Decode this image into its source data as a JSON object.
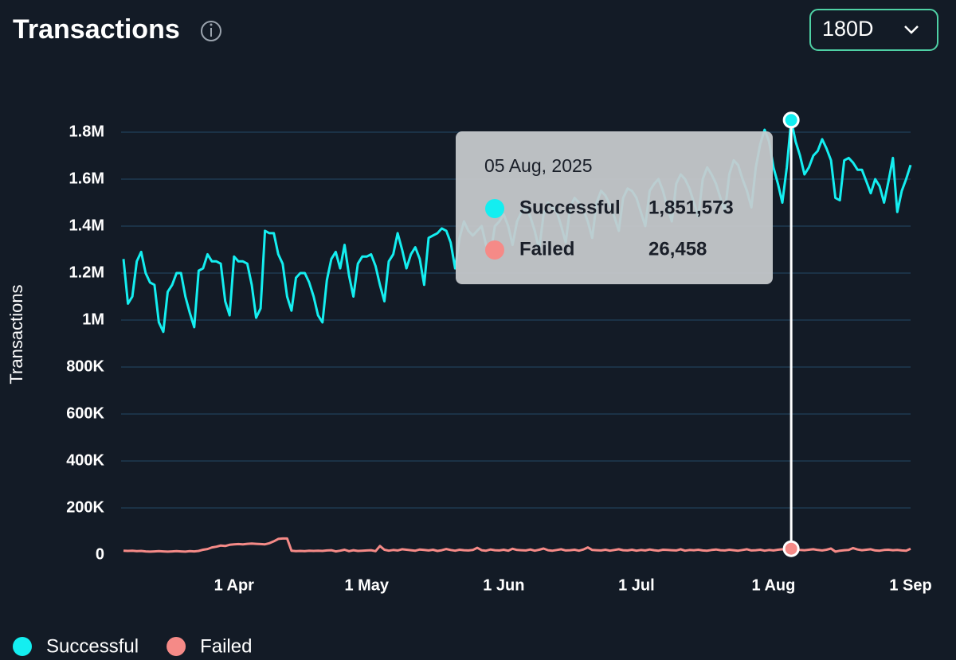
{
  "title": "Transactions",
  "controls": {
    "period": "180D"
  },
  "chart_data": {
    "type": "line",
    "y_label": "Transactions",
    "tooltip_title": "05 Aug, 2025",
    "ylim": [
      0,
      1800000
    ],
    "yticks": [
      0,
      {
        "value": 200000,
        "label": "200K"
      },
      {
        "value": 400000,
        "label": "400K"
      },
      {
        "value": 600000,
        "label": "600K"
      },
      {
        "value": 800000,
        "label": "800K"
      },
      {
        "value": 1000000,
        "label": "1M"
      },
      {
        "value": 1200000,
        "label": "1.2M"
      },
      {
        "value": 1400000,
        "label": "1.4M"
      },
      {
        "value": 1600000,
        "label": "1.6M"
      },
      {
        "value": 1800000,
        "label": "1.8M"
      }
    ],
    "grid": true,
    "legend": "bottom-left",
    "categories": [
      null,
      null,
      null,
      null,
      null,
      null,
      null,
      null,
      null,
      null,
      null,
      null,
      null,
      null,
      null,
      null,
      null,
      null,
      null,
      null,
      null,
      null,
      null,
      null,
      null,
      "1 Apr",
      null,
      null,
      null,
      null,
      null,
      null,
      null,
      null,
      null,
      null,
      null,
      null,
      null,
      null,
      null,
      null,
      null,
      null,
      null,
      null,
      null,
      null,
      null,
      null,
      null,
      null,
      null,
      null,
      null,
      "1 May",
      null,
      null,
      null,
      null,
      null,
      null,
      null,
      null,
      null,
      null,
      null,
      null,
      null,
      null,
      null,
      null,
      null,
      null,
      null,
      null,
      null,
      null,
      null,
      null,
      null,
      null,
      null,
      null,
      null,
      null,
      "1 Jun",
      null,
      null,
      null,
      null,
      null,
      null,
      null,
      null,
      null,
      null,
      null,
      null,
      null,
      null,
      null,
      null,
      null,
      null,
      null,
      null,
      null,
      null,
      null,
      null,
      null,
      null,
      null,
      null,
      null,
      "1 Jul",
      null,
      null,
      null,
      null,
      null,
      null,
      null,
      null,
      null,
      null,
      null,
      null,
      null,
      null,
      null,
      null,
      null,
      null,
      null,
      null,
      null,
      null,
      null,
      null,
      null,
      null,
      null,
      null,
      null,
      null,
      "1 Aug",
      null,
      null,
      null,
      null,
      null,
      null,
      null,
      null,
      null,
      null,
      null,
      null,
      null,
      null,
      null,
      null,
      null,
      null,
      null,
      null,
      null,
      null,
      null,
      null,
      null,
      null,
      null,
      null,
      null,
      null,
      "1 Sep"
    ],
    "series": [
      {
        "name": "Successful",
        "color": "#14eef0",
        "values": [
          1260000,
          1070000,
          1100000,
          1250000,
          1290000,
          1200000,
          1160000,
          1150000,
          990000,
          950000,
          1120000,
          1150000,
          1200000,
          1200000,
          1100000,
          1030000,
          970000,
          1210000,
          1220000,
          1280000,
          1250000,
          1250000,
          1240000,
          1080000,
          1020000,
          1270000,
          1250000,
          1250000,
          1240000,
          1150000,
          1010000,
          1050000,
          1380000,
          1370000,
          1370000,
          1280000,
          1240000,
          1100000,
          1040000,
          1180000,
          1200000,
          1200000,
          1160000,
          1100000,
          1020000,
          990000,
          1170000,
          1260000,
          1290000,
          1220000,
          1320000,
          1190000,
          1100000,
          1240000,
          1270000,
          1270000,
          1280000,
          1230000,
          1150000,
          1080000,
          1250000,
          1280000,
          1370000,
          1300000,
          1220000,
          1280000,
          1310000,
          1260000,
          1150000,
          1350000,
          1360000,
          1370000,
          1390000,
          1380000,
          1330000,
          1220000,
          1350000,
          1420000,
          1380000,
          1360000,
          1380000,
          1400000,
          1320000,
          1280000,
          1400000,
          1420000,
          1450000,
          1400000,
          1320000,
          1420000,
          1460000,
          1480000,
          1440000,
          1380000,
          1300000,
          1450000,
          1500000,
          1480000,
          1460000,
          1400000,
          1330000,
          1480000,
          1520000,
          1500000,
          1470000,
          1420000,
          1350000,
          1500000,
          1550000,
          1530000,
          1490000,
          1440000,
          1380000,
          1520000,
          1560000,
          1550000,
          1520000,
          1460000,
          1400000,
          1550000,
          1580000,
          1600000,
          1550000,
          1480000,
          1420000,
          1580000,
          1620000,
          1600000,
          1560000,
          1500000,
          1440000,
          1600000,
          1650000,
          1620000,
          1580000,
          1520000,
          1460000,
          1620000,
          1680000,
          1660000,
          1600000,
          1550000,
          1480000,
          1650000,
          1750000,
          1810000,
          1760000,
          1650000,
          1580000,
          1500000,
          1650000,
          1851573,
          1760000,
          1700000,
          1620000,
          1650000,
          1700000,
          1720000,
          1770000,
          1730000,
          1680000,
          1520000,
          1510000,
          1680000,
          1690000,
          1670000,
          1640000,
          1640000,
          1590000,
          1540000,
          1600000,
          1570000,
          1500000,
          1590000,
          1690000,
          1460000,
          1550000,
          1600000,
          1660000
        ],
        "value_labels": [
          null,
          null,
          null,
          null,
          null,
          null,
          null,
          null,
          null,
          null,
          null,
          null,
          null,
          null,
          null,
          null,
          null,
          null,
          null,
          null,
          null,
          null,
          null,
          null,
          null,
          null,
          null,
          null,
          null,
          null,
          null,
          null,
          null,
          null,
          null,
          null,
          null,
          null,
          null,
          null,
          null,
          null,
          null,
          null,
          null,
          null,
          null,
          null,
          null,
          null,
          null,
          null,
          null,
          null,
          null,
          null,
          null,
          null,
          null,
          null,
          null,
          null,
          null,
          null,
          null,
          null,
          null,
          null,
          null,
          null,
          null,
          null,
          null,
          null,
          null,
          null,
          null,
          null,
          null,
          null,
          null,
          null,
          null,
          null,
          null,
          null,
          null,
          null,
          null,
          null,
          null,
          null,
          null,
          null,
          null,
          null,
          null,
          null,
          null,
          null,
          null,
          null,
          null,
          null,
          null,
          null,
          null,
          null,
          null,
          null,
          null,
          null,
          null,
          null,
          null,
          null,
          null,
          null,
          null,
          null,
          null,
          null,
          null,
          null,
          null,
          null,
          null,
          null,
          null,
          null,
          null,
          null,
          null,
          null,
          null,
          null,
          null,
          null,
          null,
          null,
          null,
          null,
          null,
          null,
          null,
          null,
          null,
          null,
          null,
          null,
          null,
          "1,851,573",
          null,
          null,
          null,
          null,
          null,
          null,
          null,
          null,
          null,
          null,
          null,
          null,
          null,
          null,
          null,
          null,
          null,
          null,
          null,
          null,
          null,
          null,
          null,
          null,
          null,
          null,
          null
        ]
      },
      {
        "name": "Failed",
        "color": "#f58a87",
        "values": [
          18000,
          17000,
          18000,
          16000,
          17000,
          15000,
          14000,
          15000,
          16000,
          15000,
          14000,
          15000,
          16000,
          15000,
          14000,
          16000,
          15000,
          17000,
          22000,
          25000,
          32000,
          35000,
          40000,
          38000,
          43000,
          45000,
          46000,
          45000,
          47000,
          48000,
          47000,
          46000,
          45000,
          50000,
          58000,
          68000,
          70000,
          70000,
          18000,
          16000,
          17000,
          16000,
          18000,
          17000,
          18000,
          17000,
          19000,
          20000,
          15000,
          18000,
          22000,
          16000,
          20000,
          17000,
          18000,
          19000,
          20000,
          16000,
          38000,
          22000,
          18000,
          21000,
          19000,
          24000,
          22000,
          20000,
          18000,
          23000,
          21000,
          19000,
          22000,
          17000,
          20000,
          25000,
          21000,
          18000,
          22000,
          20000,
          19000,
          21000,
          30000,
          20000,
          18000,
          23000,
          20000,
          19000,
          22000,
          18000,
          26000,
          21000,
          20000,
          19000,
          23000,
          18000,
          22000,
          27000,
          20000,
          18000,
          21000,
          24000,
          19000,
          20000,
          22000,
          18000,
          23000,
          32000,
          21000,
          20000,
          19000,
          22000,
          18000,
          21000,
          24000,
          20000,
          19000,
          22000,
          18000,
          21000,
          19000,
          23000,
          20000,
          18000,
          22000,
          21000,
          20000,
          19000,
          24000,
          18000,
          21000,
          20000,
          22000,
          19000,
          18000,
          21000,
          23000,
          20000,
          19000,
          22000,
          20000,
          18000,
          21000,
          24000,
          19000,
          20000,
          22000,
          18000,
          21000,
          19000,
          22000,
          24000,
          20000,
          26458,
          23000,
          21000,
          20000,
          22000,
          24000,
          21000,
          19000,
          22000,
          27000,
          14000,
          18000,
          20000,
          21000,
          29000,
          23000,
          20000,
          22000,
          24000,
          19000,
          18000,
          21000,
          22000,
          20000,
          21000,
          19000,
          18000,
          26000
        ],
        "value_labels": [
          null,
          null,
          null,
          null,
          null,
          null,
          null,
          null,
          null,
          null,
          null,
          null,
          null,
          null,
          null,
          null,
          null,
          null,
          null,
          null,
          null,
          null,
          null,
          null,
          null,
          null,
          null,
          null,
          null,
          null,
          null,
          null,
          null,
          null,
          null,
          null,
          null,
          null,
          null,
          null,
          null,
          null,
          null,
          null,
          null,
          null,
          null,
          null,
          null,
          null,
          null,
          null,
          null,
          null,
          null,
          null,
          null,
          null,
          null,
          null,
          null,
          null,
          null,
          null,
          null,
          null,
          null,
          null,
          null,
          null,
          null,
          null,
          null,
          null,
          null,
          null,
          null,
          null,
          null,
          null,
          null,
          null,
          null,
          null,
          null,
          null,
          null,
          null,
          null,
          null,
          null,
          null,
          null,
          null,
          null,
          null,
          null,
          null,
          null,
          null,
          null,
          null,
          null,
          null,
          null,
          null,
          null,
          null,
          null,
          null,
          null,
          null,
          null,
          null,
          null,
          null,
          null,
          null,
          null,
          null,
          null,
          null,
          null,
          null,
          null,
          null,
          null,
          null,
          null,
          null,
          null,
          null,
          null,
          null,
          null,
          null,
          null,
          null,
          null,
          null,
          null,
          null,
          null,
          null,
          null,
          null,
          null,
          null,
          null,
          null,
          null,
          "26,458",
          null,
          null,
          null,
          null,
          null,
          null,
          null,
          null,
          null,
          null,
          null,
          null,
          null,
          null,
          null,
          null,
          null,
          null,
          null,
          null,
          null,
          null,
          null,
          null,
          null,
          null,
          null
        ]
      }
    ]
  }
}
